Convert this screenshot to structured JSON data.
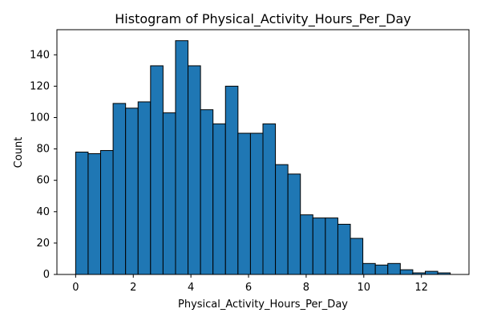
{
  "chart_data": {
    "type": "bar",
    "title": "Histogram of Physical_Activity_Hours_Per_Day",
    "xlabel": "Physical_Activity_Hours_Per_Day",
    "ylabel": "Count",
    "xlim": [
      -0.65,
      13.65
    ],
    "ylim": [
      0,
      156
    ],
    "x_ticks": [
      0,
      2,
      4,
      6,
      8,
      10,
      12
    ],
    "y_ticks": [
      0,
      20,
      40,
      60,
      80,
      100,
      120,
      140
    ],
    "grid": false,
    "bar_color": "#1f77b4",
    "edge_color": "#000000",
    "bins": {
      "start": 0,
      "end": 13,
      "width": 0.4333,
      "counts": [
        78,
        77,
        79,
        109,
        106,
        110,
        133,
        103,
        149,
        133,
        105,
        96,
        120,
        90,
        90,
        96,
        70,
        64,
        38,
        36,
        36,
        32,
        23,
        7,
        6,
        7,
        3,
        1,
        2,
        1
      ]
    }
  }
}
